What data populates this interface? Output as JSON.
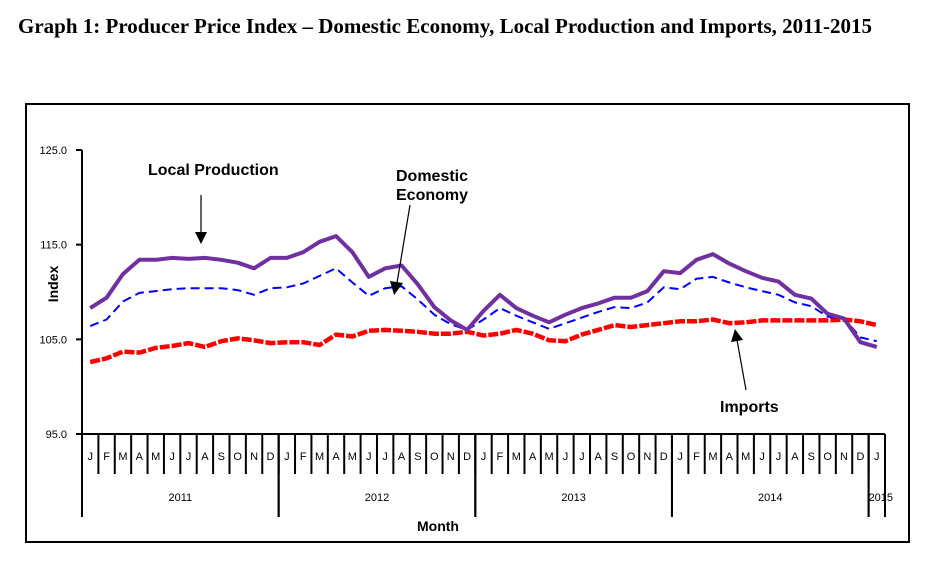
{
  "title": "Graph 1: Producer Price Index –  Domestic Economy, Local Production and Imports, 2011-2015",
  "chart_data": {
    "type": "line",
    "title": "Graph 1: Producer Price Index – Domestic Economy, Local Production and Imports, 2011-2015",
    "xlabel": "Month",
    "ylabel": "Index",
    "ylim": [
      95.0,
      125.0
    ],
    "yticks": [
      "95.0",
      "105.0",
      "115.0",
      "125.0"
    ],
    "ytick_values": [
      95.0,
      105.0,
      115.0,
      125.0
    ],
    "grid": false,
    "month_labels": [
      "J",
      "F",
      "M",
      "A",
      "M",
      "J",
      "J",
      "A",
      "S",
      "O",
      "N",
      "D",
      "J",
      "F",
      "M",
      "A",
      "M",
      "J",
      "J",
      "A",
      "S",
      "O",
      "N",
      "D",
      "J",
      "F",
      "M",
      "A",
      "M",
      "J",
      "J",
      "A",
      "S",
      "O",
      "N",
      "D",
      "J",
      "F",
      "M",
      "A",
      "M",
      "J",
      "J",
      "A",
      "S",
      "O",
      "N",
      "D",
      "J"
    ],
    "years": [
      {
        "label": "2011",
        "start": 0,
        "end": 12
      },
      {
        "label": "2012",
        "start": 12,
        "end": 24
      },
      {
        "label": "2013",
        "start": 24,
        "end": 36
      },
      {
        "label": "2014",
        "start": 36,
        "end": 48
      },
      {
        "label": "2015",
        "start": 48,
        "end": 49
      }
    ],
    "series": [
      {
        "name": "Local Production",
        "color": "#7030a0",
        "style": "solid",
        "values": [
          108.3,
          109.4,
          111.9,
          113.4,
          113.4,
          113.6,
          113.5,
          113.6,
          113.4,
          113.1,
          112.5,
          113.6,
          113.6,
          114.2,
          115.3,
          115.9,
          114.2,
          111.6,
          112.5,
          112.8,
          110.8,
          108.4,
          107.0,
          106.0,
          108.0,
          109.7,
          108.3,
          107.5,
          106.8,
          107.6,
          108.3,
          108.8,
          109.4,
          109.4,
          110.1,
          112.2,
          112.0,
          113.4,
          114.0,
          113.0,
          112.2,
          111.5,
          111.1,
          109.7,
          109.3,
          107.7,
          107.2,
          104.7,
          104.2
        ]
      },
      {
        "name": "Domestic Economy",
        "color": "#0000ff",
        "style": "dashed",
        "values": [
          106.4,
          107.1,
          109.0,
          109.9,
          110.1,
          110.3,
          110.4,
          110.4,
          110.4,
          110.2,
          109.7,
          110.4,
          110.5,
          110.9,
          111.7,
          112.5,
          111.0,
          109.6,
          110.4,
          110.6,
          109.2,
          107.6,
          106.6,
          106.0,
          107.1,
          108.3,
          107.5,
          106.8,
          106.1,
          106.7,
          107.3,
          107.9,
          108.4,
          108.3,
          108.9,
          110.5,
          110.3,
          111.4,
          111.6,
          111.0,
          110.5,
          110.1,
          109.7,
          108.9,
          108.5,
          107.4,
          107.2,
          105.2,
          104.8
        ]
      },
      {
        "name": "Imports",
        "color": "#ff0000",
        "style": "thick-dashed",
        "values": [
          102.6,
          103.0,
          103.7,
          103.6,
          104.1,
          104.3,
          104.6,
          104.2,
          104.8,
          105.1,
          104.9,
          104.6,
          104.7,
          104.7,
          104.4,
          105.5,
          105.3,
          105.9,
          106.0,
          105.9,
          105.8,
          105.6,
          105.6,
          105.8,
          105.4,
          105.6,
          106.0,
          105.6,
          104.9,
          104.8,
          105.5,
          106.0,
          106.5,
          106.3,
          106.5,
          106.7,
          106.9,
          106.9,
          107.1,
          106.7,
          106.8,
          107.0,
          107.0,
          107.0,
          107.0,
          107.0,
          107.1,
          106.9,
          106.5
        ]
      }
    ],
    "annotations": [
      {
        "text": "Local Production",
        "points_to": "Local Production"
      },
      {
        "text_lines": [
          "Domestic",
          "Economy"
        ],
        "points_to": "Domestic Economy"
      },
      {
        "text": "Imports",
        "points_to": "Imports"
      }
    ]
  }
}
